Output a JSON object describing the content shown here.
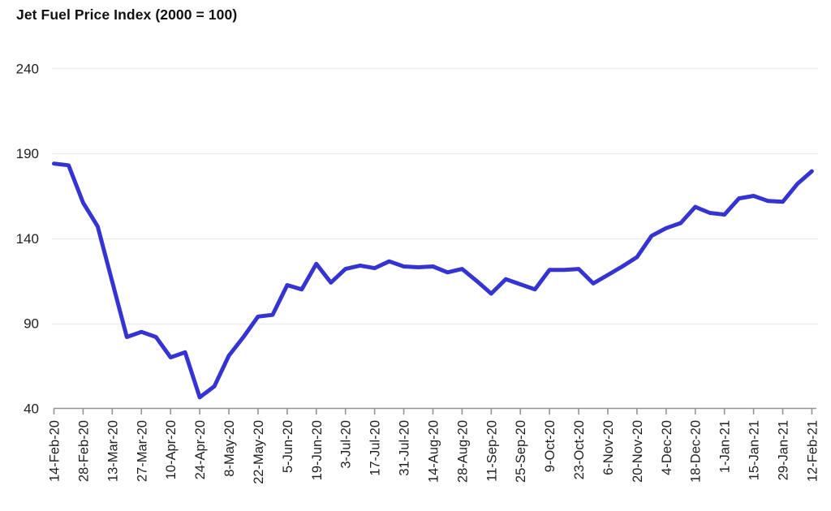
{
  "header": {
    "title": "Jet Fuel Price Index (2000 = 100)"
  },
  "chart_data": {
    "type": "line",
    "title": "Jet Fuel Price Index (2000 = 100)",
    "series_name": "Jet Fuel Price Index",
    "x": [
      "14-Feb-20",
      "21-Feb-20",
      "28-Feb-20",
      "6-Mar-20",
      "13-Mar-20",
      "20-Mar-20",
      "27-Mar-20",
      "3-Apr-20",
      "10-Apr-20",
      "17-Apr-20",
      "24-Apr-20",
      "1-May-20",
      "8-May-20",
      "15-May-20",
      "22-May-20",
      "29-May-20",
      "5-Jun-20",
      "12-Jun-20",
      "19-Jun-20",
      "26-Jun-20",
      "3-Jul-20",
      "10-Jul-20",
      "17-Jul-20",
      "24-Jul-20",
      "31-Jul-20",
      "7-Aug-20",
      "14-Aug-20",
      "21-Aug-20",
      "28-Aug-20",
      "4-Sep-20",
      "11-Sep-20",
      "18-Sep-20",
      "25-Sep-20",
      "2-Oct-20",
      "9-Oct-20",
      "16-Oct-20",
      "23-Oct-20",
      "30-Oct-20",
      "6-Nov-20",
      "13-Nov-20",
      "20-Nov-20",
      "27-Nov-20",
      "4-Dec-20",
      "11-Dec-20",
      "18-Dec-20",
      "25-Dec-20",
      "1-Jan-21",
      "8-Jan-21",
      "15-Jan-21",
      "22-Jan-21",
      "29-Jan-21",
      "5-Feb-21",
      "12-Feb-21"
    ],
    "values": [
      184,
      183,
      161,
      147,
      114.5,
      82,
      85,
      82,
      70,
      73,
      46.5,
      53,
      71,
      82,
      94,
      95,
      112.5,
      110,
      125,
      114,
      122,
      124,
      122.5,
      126.5,
      123.5,
      123,
      123.5,
      120,
      122,
      115,
      107.5,
      116,
      113,
      110,
      121.5,
      121.5,
      122,
      113.5,
      118.5,
      123.5,
      129,
      141.5,
      146,
      149,
      158.5,
      155,
      154,
      163.5,
      165,
      162,
      161.5,
      172,
      179.5
    ],
    "x_tick_labels": [
      "14-Feb-20",
      "28-Feb-20",
      "13-Mar-20",
      "27-Mar-20",
      "10-Apr-20",
      "24-Apr-20",
      "8-May-20",
      "22-May-20",
      "5-Jun-20",
      "19-Jun-20",
      "3-Jul-20",
      "17-Jul-20",
      "31-Jul-20",
      "14-Aug-20",
      "28-Aug-20",
      "11-Sep-20",
      "25-Sep-20",
      "9-Oct-20",
      "23-Oct-20",
      "6-Nov-20",
      "20-Nov-20",
      "4-Dec-20",
      "18-Dec-20",
      "1-Jan-21",
      "15-Jan-21",
      "29-Jan-21",
      "12-Feb-21"
    ],
    "yticks": [
      40,
      90,
      140,
      190,
      240
    ],
    "ylim": [
      40,
      240
    ],
    "grid": "horizontal-only",
    "legend": "none",
    "colors": {
      "line": "#3534d3",
      "axis": "#949494",
      "gridline": "#ededed",
      "tick_label": "#1f1f1f",
      "title": "#111111"
    }
  }
}
